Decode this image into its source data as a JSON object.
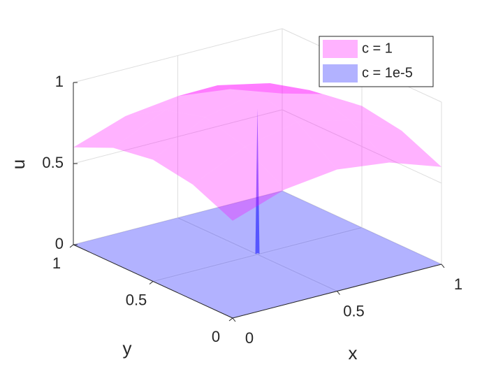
{
  "chart_data": {
    "type": "surface",
    "xlabel": "x",
    "ylabel": "y",
    "zlabel": "u",
    "xlim": [
      0,
      1
    ],
    "ylim": [
      0,
      1
    ],
    "zlim": [
      0,
      1
    ],
    "xticks": [
      0,
      0.5,
      1
    ],
    "yticks": [
      0,
      0.5,
      1
    ],
    "zticks": [
      0,
      0.5,
      1
    ],
    "grid": true,
    "legend_position": "northeast",
    "series": [
      {
        "name": "c = 1e-5",
        "color": "#0000ff",
        "x": [
          0,
          0.49,
          0.5,
          0.51,
          1
        ],
        "y": [
          0,
          0.49,
          0.5,
          0.51,
          1
        ],
        "values": [
          [
            0,
            0,
            0,
            0,
            0
          ],
          [
            0,
            0,
            0,
            0,
            0
          ],
          [
            0,
            0,
            0.9,
            0,
            0
          ],
          [
            0,
            0,
            0,
            0,
            0
          ],
          [
            0,
            0,
            0,
            0,
            0
          ]
        ]
      },
      {
        "name": "c = 1",
        "color": "#ff00ff",
        "x": [
          0,
          0.25,
          0.5,
          0.75,
          1
        ],
        "y": [
          0,
          0.25,
          0.5,
          0.75,
          1
        ],
        "values": [
          [
            0.6,
            0.71,
            0.75,
            0.71,
            0.6
          ],
          [
            0.71,
            0.86,
            0.93,
            0.86,
            0.71
          ],
          [
            0.75,
            0.93,
            1,
            0.93,
            0.75
          ],
          [
            0.71,
            0.86,
            0.93,
            0.86,
            0.71
          ],
          [
            0.6,
            0.71,
            0.75,
            0.71,
            0.6
          ]
        ]
      }
    ],
    "legend_order": [
      1,
      0
    ]
  }
}
